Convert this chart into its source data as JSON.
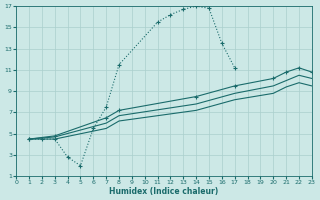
{
  "xlabel": "Humidex (Indice chaleur)",
  "bg_color": "#cce8e6",
  "grid_color": "#aacfcd",
  "line_color": "#1a6b6b",
  "xlim": [
    0,
    23
  ],
  "ylim": [
    1,
    17
  ],
  "xticks": [
    0,
    1,
    2,
    3,
    4,
    5,
    6,
    7,
    8,
    9,
    10,
    11,
    12,
    13,
    14,
    15,
    16,
    17,
    18,
    19,
    20,
    21,
    22,
    23
  ],
  "yticks": [
    1,
    3,
    5,
    7,
    9,
    11,
    13,
    15,
    17
  ],
  "curve1_x": [
    1,
    2,
    3,
    4,
    5,
    6,
    7,
    8,
    11,
    12,
    13,
    14,
    15,
    16,
    17
  ],
  "curve1_y": [
    4.5,
    4.5,
    4.5,
    2.8,
    2.0,
    5.5,
    7.5,
    11.5,
    15.5,
    16.2,
    16.7,
    17.0,
    16.8,
    13.5,
    11.2
  ],
  "curve2_x": [
    1,
    3,
    7,
    8,
    14,
    17,
    20,
    21,
    22,
    23
  ],
  "curve2_y": [
    4.5,
    4.8,
    6.5,
    7.2,
    8.5,
    9.5,
    10.2,
    10.8,
    11.2,
    10.8
  ],
  "curve3_x": [
    1,
    3,
    7,
    8,
    14,
    17,
    20,
    21,
    22,
    23
  ],
  "curve3_y": [
    4.5,
    4.7,
    6.0,
    6.7,
    7.8,
    8.8,
    9.5,
    10.0,
    10.5,
    10.2
  ],
  "curve4_x": [
    1,
    3,
    7,
    8,
    14,
    17,
    20,
    21,
    22,
    23
  ],
  "curve4_y": [
    4.5,
    4.5,
    5.5,
    6.2,
    7.2,
    8.2,
    8.8,
    9.4,
    9.8,
    9.5
  ]
}
